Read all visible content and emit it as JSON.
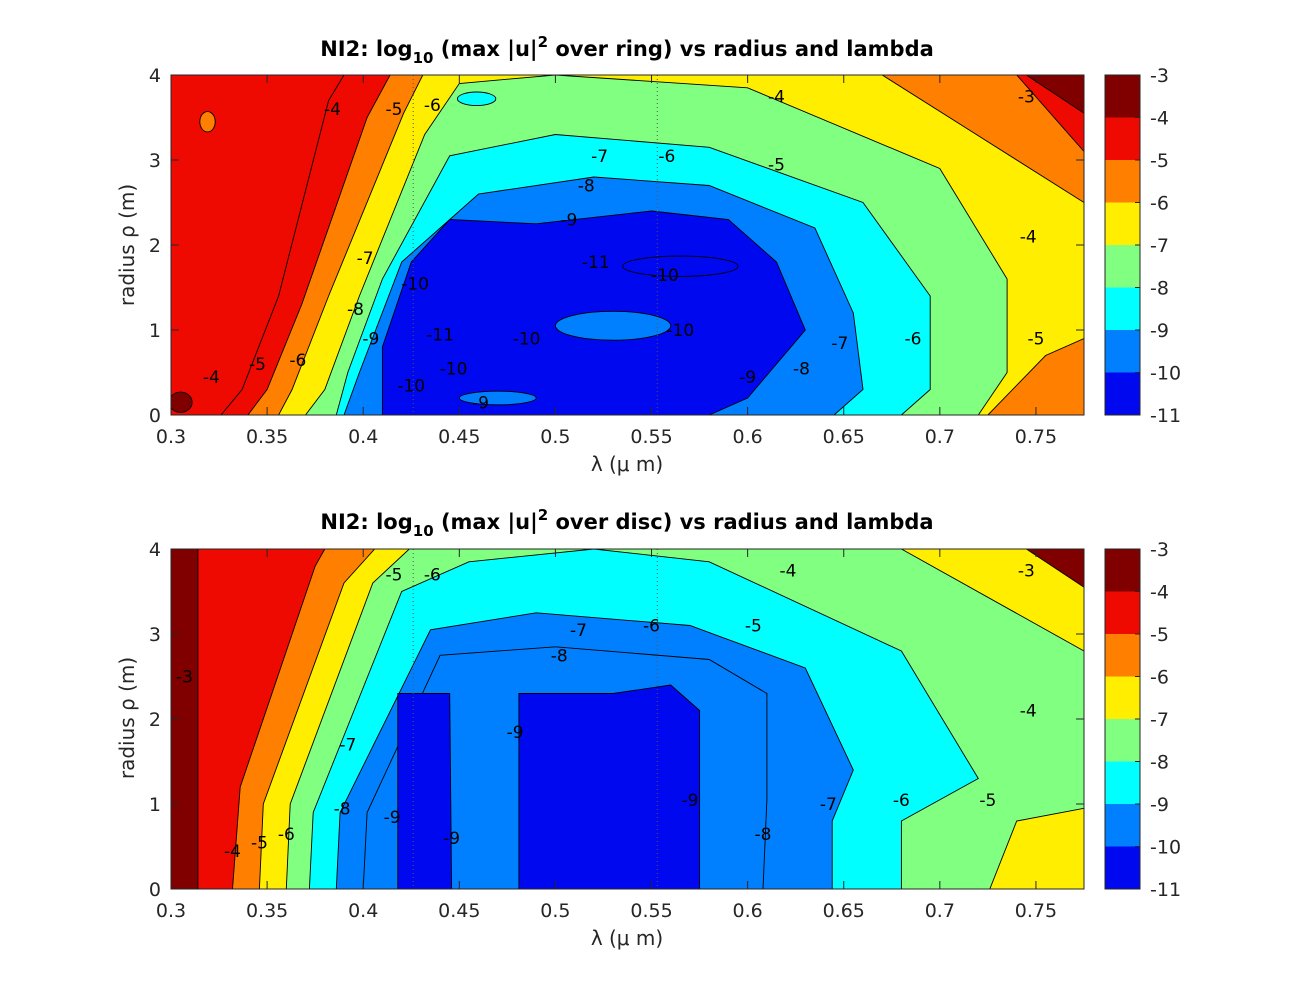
{
  "chart_data": [
    {
      "type": "contour",
      "title_main": "NI2: log",
      "title_sub": "10",
      "title_mid": " (max |u|",
      "title_sup": "2",
      "title_end": " over ring) vs radius and lambda",
      "xlabel": "λ (μ m)",
      "ylabel": "radius ρ (m)",
      "xlim": [
        0.3,
        0.775
      ],
      "ylim": [
        0,
        4
      ],
      "xticks": [
        "0.3",
        "0.35",
        "0.4",
        "0.45",
        "0.5",
        "0.55",
        "0.6",
        "0.65",
        "0.7",
        "0.75"
      ],
      "yticks": [
        "0",
        "1",
        "2",
        "3",
        "4"
      ],
      "colorbar": {
        "min": -11,
        "max": -3,
        "ticks": [
          "-3",
          "-4",
          "-5",
          "-6",
          "-7",
          "-8",
          "-9",
          "-10",
          "-11"
        ]
      },
      "levels": [
        -3,
        -4,
        -5,
        -6,
        -7,
        -8,
        -9,
        -10,
        -11
      ],
      "contour_labels": [
        {
          "text": "-4",
          "x": 0.384,
          "y": 3.6
        },
        {
          "text": "-5",
          "x": 0.416,
          "y": 3.6
        },
        {
          "text": "-6",
          "x": 0.436,
          "y": 3.65
        },
        {
          "text": "-7",
          "x": 0.523,
          "y": 3.05
        },
        {
          "text": "-8",
          "x": 0.516,
          "y": 2.7
        },
        {
          "text": "-9",
          "x": 0.507,
          "y": 2.3
        },
        {
          "text": "-11",
          "x": 0.521,
          "y": 1.8
        },
        {
          "text": "-10",
          "x": 0.557,
          "y": 1.65
        },
        {
          "text": "-10",
          "x": 0.427,
          "y": 1.55
        },
        {
          "text": "-11",
          "x": 0.44,
          "y": 0.95
        },
        {
          "text": "-10",
          "x": 0.447,
          "y": 0.55
        },
        {
          "text": "-10",
          "x": 0.485,
          "y": 0.9
        },
        {
          "text": "-10",
          "x": 0.565,
          "y": 1.0
        },
        {
          "text": "-10",
          "x": 0.425,
          "y": 0.35
        },
        {
          "text": "-9",
          "x": 0.461,
          "y": 0.15
        },
        {
          "text": "-9",
          "x": 0.404,
          "y": 0.9
        },
        {
          "text": "-8",
          "x": 0.396,
          "y": 1.25
        },
        {
          "text": "-7",
          "x": 0.401,
          "y": 1.85
        },
        {
          "text": "-6",
          "x": 0.366,
          "y": 0.65
        },
        {
          "text": "-5",
          "x": 0.345,
          "y": 0.6
        },
        {
          "text": "-4",
          "x": 0.321,
          "y": 0.45
        },
        {
          "text": "-6",
          "x": 0.558,
          "y": 3.05
        },
        {
          "text": "-5",
          "x": 0.615,
          "y": 2.95
        },
        {
          "text": "-4",
          "x": 0.615,
          "y": 3.75
        },
        {
          "text": "-3",
          "x": 0.745,
          "y": 3.75
        },
        {
          "text": "-4",
          "x": 0.746,
          "y": 2.1
        },
        {
          "text": "-7",
          "x": 0.648,
          "y": 0.85
        },
        {
          "text": "-6",
          "x": 0.686,
          "y": 0.9
        },
        {
          "text": "-5",
          "x": 0.75,
          "y": 0.9
        },
        {
          "text": "-8",
          "x": 0.628,
          "y": 0.55
        },
        {
          "text": "-9",
          "x": 0.6,
          "y": 0.45
        }
      ]
    },
    {
      "type": "contour",
      "title_main": "NI2: log",
      "title_sub": "10",
      "title_mid": " (max |u|",
      "title_sup": "2",
      "title_end": " over disc) vs radius and lambda",
      "xlabel": "λ (μ m)",
      "ylabel": "radius ρ (m)",
      "xlim": [
        0.3,
        0.775
      ],
      "ylim": [
        0,
        4
      ],
      "xticks": [
        "0.3",
        "0.35",
        "0.4",
        "0.45",
        "0.5",
        "0.55",
        "0.6",
        "0.65",
        "0.7",
        "0.75"
      ],
      "yticks": [
        "0",
        "1",
        "2",
        "3",
        "4"
      ],
      "colorbar": {
        "min": -11,
        "max": -3,
        "ticks": [
          "-3",
          "-4",
          "-5",
          "-6",
          "-7",
          "-8",
          "-9",
          "-10",
          "-11"
        ]
      },
      "levels": [
        -3,
        -4,
        -5,
        -6,
        -7,
        -8,
        -9,
        -10,
        -11
      ],
      "contour_labels": [
        {
          "text": "-5",
          "x": 0.416,
          "y": 3.7
        },
        {
          "text": "-6",
          "x": 0.436,
          "y": 3.7
        },
        {
          "text": "-7",
          "x": 0.512,
          "y": 3.05
        },
        {
          "text": "-6",
          "x": 0.55,
          "y": 3.1
        },
        {
          "text": "-5",
          "x": 0.603,
          "y": 3.1
        },
        {
          "text": "-4",
          "x": 0.621,
          "y": 3.75
        },
        {
          "text": "-3",
          "x": 0.745,
          "y": 3.75
        },
        {
          "text": "-8",
          "x": 0.502,
          "y": 2.75
        },
        {
          "text": "-3",
          "x": 0.307,
          "y": 2.5
        },
        {
          "text": "-7",
          "x": 0.392,
          "y": 1.7
        },
        {
          "text": "-8",
          "x": 0.389,
          "y": 0.95
        },
        {
          "text": "-9",
          "x": 0.415,
          "y": 0.85
        },
        {
          "text": "-9",
          "x": 0.446,
          "y": 0.6
        },
        {
          "text": "-9",
          "x": 0.479,
          "y": 1.85
        },
        {
          "text": "-9",
          "x": 0.57,
          "y": 1.05
        },
        {
          "text": "-8",
          "x": 0.608,
          "y": 0.65
        },
        {
          "text": "-7",
          "x": 0.642,
          "y": 1.0
        },
        {
          "text": "-6",
          "x": 0.68,
          "y": 1.05
        },
        {
          "text": "-5",
          "x": 0.725,
          "y": 1.05
        },
        {
          "text": "-6",
          "x": 0.36,
          "y": 0.65
        },
        {
          "text": "-5",
          "x": 0.346,
          "y": 0.55
        },
        {
          "text": "-4",
          "x": 0.332,
          "y": 0.45
        },
        {
          "text": "-4",
          "x": 0.746,
          "y": 2.1
        }
      ]
    }
  ],
  "colors": {
    "m3": "#800000",
    "m4": "#EE0A00",
    "m5": "#FF7F00",
    "m6": "#FFEE00",
    "m7": "#80FF80",
    "m8": "#00FFFF",
    "m9": "#0080FF",
    "m10": "#0008F0",
    "m11": "#00008C"
  }
}
